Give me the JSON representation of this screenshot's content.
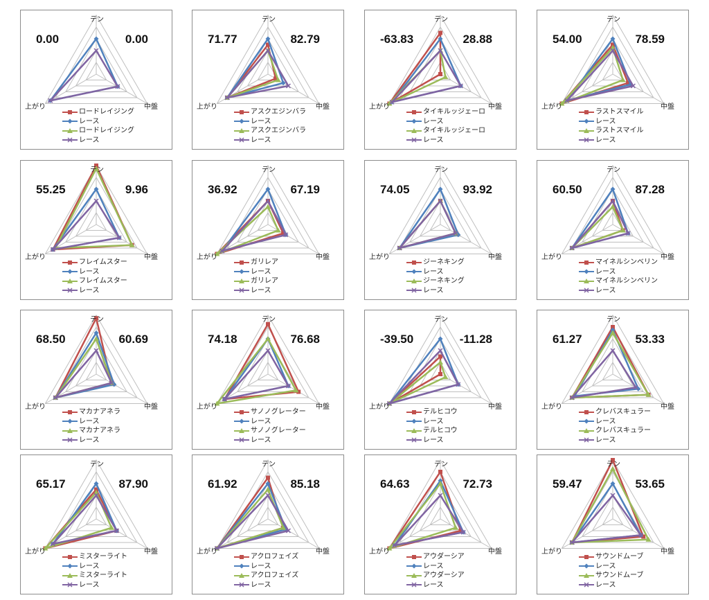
{
  "axes": [
    "テン",
    "中盤",
    "上がり"
  ],
  "colors": {
    "horse": "#c0504d",
    "race": "#4f81bd",
    "horse2": "#9bbb59",
    "race2": "#8064a2"
  },
  "chart_data": [
    {
      "type": "radar",
      "left_score": "0.00",
      "right_score": "0.00",
      "legend": [
        "ロードレイジング",
        "レース",
        "ロードレイジング",
        "レース"
      ],
      "series": [
        {
          "name": "ロードレイジング",
          "values": [
            null,
            null,
            null
          ]
        },
        {
          "name": "レース",
          "values": [
            0.6,
            0.42,
            0.9
          ]
        },
        {
          "name": "ロードレイジング",
          "values": [
            null,
            null,
            null
          ]
        },
        {
          "name": "レース",
          "values": [
            0.4,
            0.42,
            0.9
          ]
        }
      ]
    },
    {
      "type": "radar",
      "left_score": "71.77",
      "right_score": "82.79",
      "legend": [
        "アスクエジンバラ",
        "レース",
        "アスクエジンバラ",
        "レース"
      ],
      "series": [
        {
          "name": "アスクエジンバラ",
          "values": [
            0.5,
            0.15,
            0.8
          ]
        },
        {
          "name": "レース",
          "values": [
            0.6,
            0.3,
            0.8
          ]
        },
        {
          "name": "アスクエジンバラ",
          "values": [
            0.4,
            0.2,
            0.8
          ]
        },
        {
          "name": "レース",
          "values": [
            0.4,
            0.4,
            0.8
          ]
        }
      ]
    },
    {
      "type": "radar",
      "left_score": "-63.83",
      "right_score": "28.88",
      "legend": [
        "タイキルッジェーロ",
        "レース",
        "タイキルッジェーロ",
        "レース"
      ],
      "series": [
        {
          "name": "タイキルッジェーロ",
          "values": [
            0.7,
            0.0,
            1.0
          ]
        },
        {
          "name": "レース",
          "values": [
            0.6,
            0.4,
            0.95
          ]
        },
        {
          "name": "タイキルッジェーロ",
          "values": [
            0.4,
            0.1,
            1.0
          ]
        },
        {
          "name": "レース",
          "values": [
            0.4,
            0.4,
            0.95
          ]
        }
      ]
    },
    {
      "type": "radar",
      "left_score": "54.00",
      "right_score": "78.59",
      "legend": [
        "ラストスマイル",
        "レース",
        "ラストスマイル",
        "レース"
      ],
      "series": [
        {
          "name": "ラストスマイル",
          "values": [
            0.5,
            0.3,
            1.0
          ]
        },
        {
          "name": "レース",
          "values": [
            0.6,
            0.35,
            0.9
          ]
        },
        {
          "name": "ラストスマイル",
          "values": [
            0.45,
            0.2,
            1.0
          ]
        },
        {
          "name": "レース",
          "values": [
            0.4,
            0.4,
            0.9
          ]
        }
      ]
    },
    {
      "type": "radar",
      "left_score": "55.25",
      "right_score": "9.96",
      "legend": [
        "フレイムスター",
        "レース",
        "フレイムスター",
        "レース"
      ],
      "series": [
        {
          "name": "フレイムスター",
          "values": [
            1.0,
            0.7,
            0.85
          ]
        },
        {
          "name": "レース",
          "values": [
            0.6,
            0.45,
            0.85
          ]
        },
        {
          "name": "フレイムスター",
          "values": [
            0.95,
            0.7,
            0.8
          ]
        },
        {
          "name": "レース",
          "values": [
            0.4,
            0.45,
            0.85
          ]
        }
      ]
    },
    {
      "type": "radar",
      "left_score": "36.92",
      "right_score": "67.19",
      "legend": [
        "ガリレア",
        "レース",
        "ガリレア",
        "レース"
      ],
      "series": [
        {
          "name": "ガリレア",
          "values": [
            0.4,
            0.3,
            1.0
          ]
        },
        {
          "name": "レース",
          "values": [
            0.6,
            0.35,
            0.9
          ]
        },
        {
          "name": "ガリレア",
          "values": [
            0.3,
            0.2,
            1.0
          ]
        },
        {
          "name": "レース",
          "values": [
            0.4,
            0.35,
            0.9
          ]
        }
      ]
    },
    {
      "type": "radar",
      "left_score": "74.05",
      "right_score": "93.92",
      "legend": [
        "ジーネキング",
        "レース",
        "ジーネキング",
        "レース"
      ],
      "series": [
        {
          "name": "ジーネキング",
          "values": [
            0.4,
            0.3,
            0.8
          ]
        },
        {
          "name": "レース",
          "values": [
            0.6,
            0.35,
            0.8
          ]
        },
        {
          "name": "ジーネキング",
          "values": [
            0.4,
            0.3,
            0.8
          ]
        },
        {
          "name": "レース",
          "values": [
            0.4,
            0.3,
            0.8
          ]
        }
      ]
    },
    {
      "type": "radar",
      "left_score": "60.50",
      "right_score": "87.28",
      "legend": [
        "マイネルシンベリン",
        "レース",
        "マイネルシンベリン",
        "レース"
      ],
      "series": [
        {
          "name": "マイネルシンベリン",
          "values": [
            0.4,
            0.2,
            0.8
          ]
        },
        {
          "name": "レース",
          "values": [
            0.6,
            0.3,
            0.8
          ]
        },
        {
          "name": "マイネルシンベリン",
          "values": [
            0.3,
            0.2,
            0.8
          ]
        },
        {
          "name": "レース",
          "values": [
            0.4,
            0.3,
            0.8
          ]
        }
      ]
    },
    {
      "type": "radar",
      "left_score": "68.50",
      "right_score": "60.69",
      "legend": [
        "マカナアネラ",
        "レース",
        "マカナアネラ",
        "レース"
      ],
      "series": [
        {
          "name": "マカナアネラ",
          "values": [
            0.95,
            0.3,
            0.8
          ]
        },
        {
          "name": "レース",
          "values": [
            0.7,
            0.35,
            0.8
          ]
        },
        {
          "name": "マカナアネラ",
          "values": [
            0.6,
            0.3,
            0.8
          ]
        },
        {
          "name": "レース",
          "values": [
            0.4,
            0.3,
            0.8
          ]
        }
      ]
    },
    {
      "type": "radar",
      "left_score": "74.18",
      "right_score": "76.68",
      "legend": [
        "サノノグレーター",
        "レース",
        "サノノグレーター",
        "レース"
      ],
      "series": [
        {
          "name": "サノノグレーター",
          "values": [
            0.85,
            0.6,
            0.85
          ]
        },
        {
          "name": "レース",
          "values": [
            0.6,
            0.4,
            0.85
          ]
        },
        {
          "name": "サノノグレーター",
          "values": [
            0.6,
            0.55,
            1.0
          ]
        },
        {
          "name": "レース",
          "values": [
            0.4,
            0.4,
            0.85
          ]
        }
      ]
    },
    {
      "type": "radar",
      "left_score": "-39.50",
      "right_score": "-11.28",
      "legend": [
        "テルヒコウ",
        "レース",
        "テルヒコウ",
        "レース"
      ],
      "series": [
        {
          "name": "テルヒコウ",
          "values": [
            0.3,
            0.0,
            1.0
          ]
        },
        {
          "name": "レース",
          "values": [
            0.6,
            0.35,
            1.0
          ]
        },
        {
          "name": "テルヒコウ",
          "values": [
            0.2,
            0.1,
            1.0
          ]
        },
        {
          "name": "レース",
          "values": [
            0.4,
            0.35,
            1.0
          ]
        }
      ]
    },
    {
      "type": "radar",
      "left_score": "61.27",
      "right_score": "53.33",
      "legend": [
        "クレバスキュラー",
        "レース",
        "クレバスキュラー",
        "レース"
      ],
      "series": [
        {
          "name": "クレバスキュラー",
          "values": [
            0.8,
            0.7,
            0.8
          ]
        },
        {
          "name": "レース",
          "values": [
            0.75,
            0.5,
            0.75
          ]
        },
        {
          "name": "クレバスキュラー",
          "values": [
            0.7,
            0.7,
            0.8
          ]
        },
        {
          "name": "レース",
          "values": [
            0.4,
            0.45,
            0.8
          ]
        }
      ]
    },
    {
      "type": "radar",
      "left_score": "65.17",
      "right_score": "87.90",
      "legend": [
        "ミスターライト",
        "レース",
        "ミスターライト",
        "レース"
      ],
      "series": [
        {
          "name": "ミスターライト",
          "values": [
            0.5,
            0.4,
            1.0
          ]
        },
        {
          "name": "レース",
          "values": [
            0.6,
            0.4,
            0.85
          ]
        },
        {
          "name": "ミスターライト",
          "values": [
            0.45,
            0.3,
            1.0
          ]
        },
        {
          "name": "レース",
          "values": [
            0.4,
            0.4,
            0.85
          ]
        }
      ]
    },
    {
      "type": "radar",
      "left_score": "61.92",
      "right_score": "85.18",
      "legend": [
        "アクロフェイズ",
        "レース",
        "アクロフェイズ",
        "レース"
      ],
      "series": [
        {
          "name": "アクロフェイズ",
          "values": [
            0.7,
            0.3,
            1.0
          ]
        },
        {
          "name": "レース",
          "values": [
            0.6,
            0.35,
            1.0
          ]
        },
        {
          "name": "アクロフェイズ",
          "values": [
            0.5,
            0.3,
            1.0
          ]
        },
        {
          "name": "レース",
          "values": [
            0.4,
            0.4,
            1.0
          ]
        }
      ]
    },
    {
      "type": "radar",
      "left_score": "64.63",
      "right_score": "72.73",
      "legend": [
        "アウダーシア",
        "レース",
        "アウダーシア",
        "レース"
      ],
      "series": [
        {
          "name": "アウダーシア",
          "values": [
            0.8,
            0.4,
            1.0
          ]
        },
        {
          "name": "レース",
          "values": [
            0.65,
            0.45,
            0.9
          ]
        },
        {
          "name": "アウダーシア",
          "values": [
            0.6,
            0.3,
            1.0
          ]
        },
        {
          "name": "レース",
          "values": [
            0.4,
            0.45,
            0.9
          ]
        }
      ]
    },
    {
      "type": "radar",
      "left_score": "59.47",
      "right_score": "53.65",
      "legend": [
        "サウンドムーブ",
        "レース",
        "サウンドムーブ",
        "レース"
      ],
      "series": [
        {
          "name": "サウンドムーブ",
          "values": [
            1.0,
            0.6,
            0.8
          ]
        },
        {
          "name": "レース",
          "values": [
            0.6,
            0.55,
            0.8
          ]
        },
        {
          "name": "サウンドムーブ",
          "values": [
            0.85,
            0.7,
            0.8
          ]
        },
        {
          "name": "レース",
          "values": [
            0.4,
            0.55,
            0.8
          ]
        }
      ]
    }
  ]
}
